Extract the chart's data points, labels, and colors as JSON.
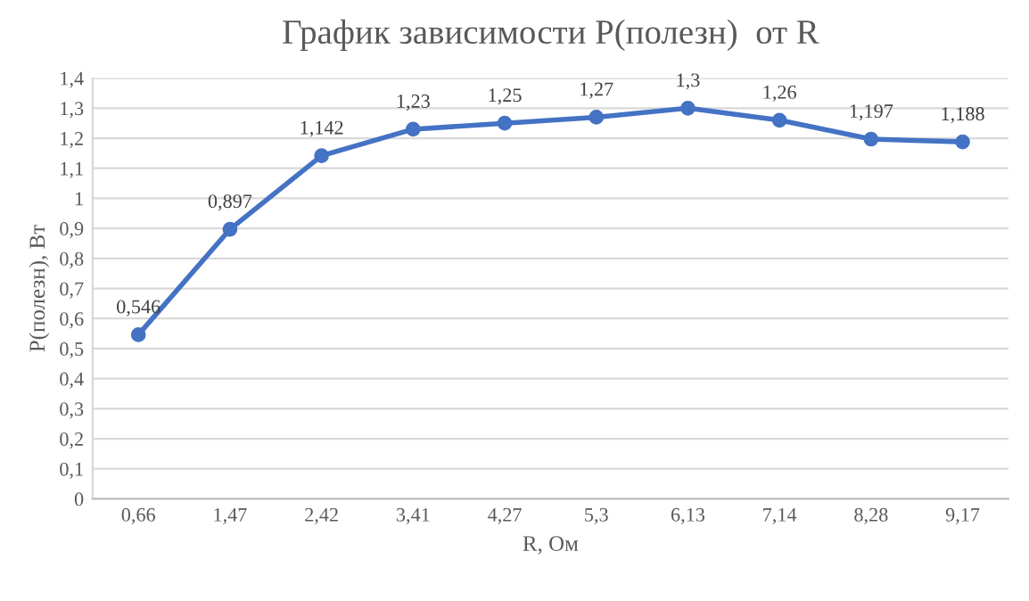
{
  "chart_data": {
    "type": "line",
    "title": "График зависимости P(полезн)  от R",
    "xlabel": "R, Ом",
    "ylabel": "P(полезн), Вт",
    "categories": [
      "0,66",
      "1,47",
      "2,42",
      "3,41",
      "4,27",
      "5,3",
      "6,13",
      "7,14",
      "8,28",
      "9,17"
    ],
    "series": [
      {
        "color": "#4472c4",
        "values": [
          0.546,
          0.897,
          1.142,
          1.23,
          1.25,
          1.27,
          1.3,
          1.26,
          1.197,
          1.188
        ],
        "value_labels": [
          "0,546",
          "0,897",
          "1,142",
          "1,23",
          "1,25",
          "1,27",
          "1,3",
          "1,26",
          "1,197",
          "1,188"
        ]
      }
    ],
    "ylim": [
      0,
      1.4
    ],
    "yticks": [
      0,
      {
        "value": 0.1,
        "label": "0,1"
      },
      {
        "value": 0.2,
        "label": "0,2"
      },
      {
        "value": 0.3,
        "label": "0,3"
      },
      {
        "value": 0.4,
        "label": "0,4"
      },
      {
        "value": 0.5,
        "label": "0,5"
      },
      {
        "value": 0.6,
        "label": "0,6"
      },
      {
        "value": 0.7,
        "label": "0,7"
      },
      {
        "value": 0.8,
        "label": "0,8"
      },
      {
        "value": 0.9,
        "label": "0,9"
      },
      1,
      {
        "value": 1.1,
        "label": "1,1"
      },
      {
        "value": 1.2,
        "label": "1,2"
      },
      {
        "value": 1.3,
        "label": "1,3"
      },
      {
        "value": 1.4,
        "label": "1,4"
      }
    ],
    "grid": "y",
    "marker": "circle",
    "line_style": "solid"
  }
}
